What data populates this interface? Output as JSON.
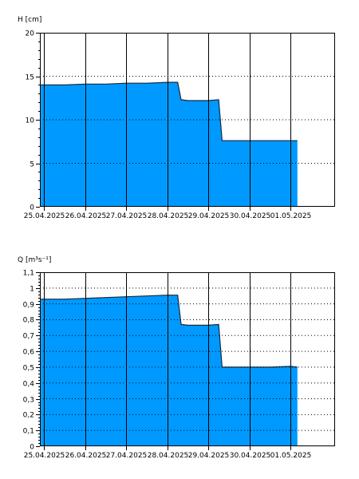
{
  "chart_data": [
    {
      "type": "area",
      "ylabel": "H [cm]",
      "ylim": [
        0,
        20
      ],
      "y_ticks": [
        "0",
        "5",
        "10",
        "15",
        "20"
      ],
      "y_tick_values": [
        0,
        5,
        10,
        15,
        20
      ],
      "y_minor_step": 1,
      "xlim": [
        "2025-04-24T21:30",
        "2025-05-02T02:00"
      ],
      "x_tick_labels": [
        "25.04.2025",
        "26.04.2025",
        "27.04.2025",
        "28.04.2025",
        "29.04.2025",
        "30.04.2025",
        "01.05.2025"
      ],
      "x_tick_times": [
        "2025-04-25T00:00",
        "2025-04-26T00:00",
        "2025-04-27T00:00",
        "2025-04-28T00:00",
        "2025-04-29T00:00",
        "2025-04-30T00:00",
        "2025-05-01T00:00"
      ],
      "grid": "dotted horizontal, solid vertical at day boundaries",
      "fill_color": "#0099ff",
      "series": [
        {
          "x": [
            "2025-04-24T22:00",
            "2025-04-25T12:00",
            "2025-04-26T00:00",
            "2025-04-26T12:00",
            "2025-04-27T00:00",
            "2025-04-27T12:00",
            "2025-04-28T00:00",
            "2025-04-28T06:00",
            "2025-04-28T08:00",
            "2025-04-28T12:00",
            "2025-04-29T00:00",
            "2025-04-29T06:00",
            "2025-04-29T08:00",
            "2025-04-30T00:00",
            "2025-04-30T12:00",
            "2025-05-01T00:00",
            "2025-05-01T04:00"
          ],
          "y": [
            14.0,
            14.0,
            14.1,
            14.1,
            14.2,
            14.2,
            14.3,
            14.3,
            12.3,
            12.2,
            12.2,
            12.3,
            7.6,
            7.6,
            7.6,
            7.6,
            7.6
          ]
        }
      ]
    },
    {
      "type": "area",
      "ylabel": "Q [m³s⁻¹]",
      "ylim": [
        0,
        1.1
      ],
      "y_ticks": [
        "0",
        "0,1",
        "0,2",
        "0,3",
        "0,4",
        "0,5",
        "0,6",
        "0,7",
        "0,8",
        "0,9",
        "1",
        "1,1"
      ],
      "y_tick_values": [
        0,
        0.1,
        0.2,
        0.3,
        0.4,
        0.5,
        0.6,
        0.7,
        0.8,
        0.9,
        1.0,
        1.1
      ],
      "y_minor_step": 0.02,
      "xlim": [
        "2025-04-24T21:30",
        "2025-05-02T02:00"
      ],
      "x_tick_labels": [
        "25.04.2025",
        "26.04.2025",
        "27.04.2025",
        "28.04.2025",
        "29.04.2025",
        "30.04.2025",
        "01.05.2025"
      ],
      "x_tick_times": [
        "2025-04-25T00:00",
        "2025-04-26T00:00",
        "2025-04-27T00:00",
        "2025-04-28T00:00",
        "2025-04-29T00:00",
        "2025-04-30T00:00",
        "2025-05-01T00:00"
      ],
      "grid": "dotted horizontal, solid vertical at day boundaries",
      "fill_color": "#0099ff",
      "series": [
        {
          "x": [
            "2025-04-24T22:00",
            "2025-04-25T12:00",
            "2025-04-26T00:00",
            "2025-04-26T12:00",
            "2025-04-27T00:00",
            "2025-04-27T12:00",
            "2025-04-28T00:00",
            "2025-04-28T06:00",
            "2025-04-28T08:00",
            "2025-04-28T12:00",
            "2025-04-29T00:00",
            "2025-04-29T06:00",
            "2025-04-29T08:00",
            "2025-04-30T00:00",
            "2025-04-30T12:00",
            "2025-05-01T00:00",
            "2025-05-01T04:00"
          ],
          "y": [
            0.93,
            0.93,
            0.935,
            0.94,
            0.945,
            0.95,
            0.955,
            0.955,
            0.77,
            0.765,
            0.765,
            0.77,
            0.5,
            0.5,
            0.5,
            0.505,
            0.5
          ]
        }
      ]
    }
  ]
}
